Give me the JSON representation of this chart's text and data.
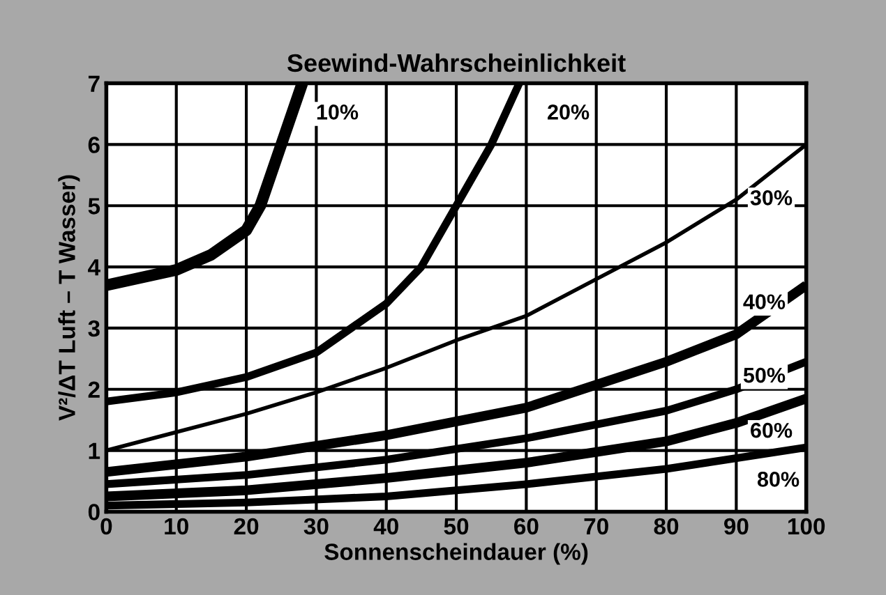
{
  "chart_data": {
    "type": "line",
    "title": "Seewind-Wahrscheinlichkeit",
    "xlabel": "Sonnenscheindauer (%)",
    "ylabel": "V²/ΔT Luft – T Wasser)",
    "xlim": [
      0,
      100
    ],
    "ylim": [
      0,
      7
    ],
    "xticks": [
      0,
      10,
      20,
      30,
      40,
      50,
      60,
      70,
      80,
      90,
      100
    ],
    "yticks": [
      0,
      1,
      2,
      3,
      4,
      5,
      6,
      7
    ],
    "grid": true,
    "marker": "none",
    "line_style": "solid",
    "series": [
      {
        "color": "#000000",
        "x": [
          0,
          10,
          15,
          20,
          22,
          25,
          28
        ],
        "values": [
          3.7,
          3.95,
          4.2,
          4.6,
          5.0,
          6.0,
          7.0
        ]
      },
      {
        "color": "#000000",
        "x": [
          0,
          10,
          20,
          30,
          40,
          45,
          50,
          55,
          59
        ],
        "values": [
          1.8,
          1.95,
          2.2,
          2.6,
          3.4,
          4.0,
          5.0,
          6.0,
          7.0
        ]
      },
      {
        "color": "#000000",
        "x": [
          0,
          10,
          20,
          30,
          40,
          50,
          60,
          70,
          80,
          90,
          100
        ],
        "values": [
          1.0,
          1.3,
          1.6,
          1.95,
          2.35,
          2.8,
          3.2,
          3.8,
          4.4,
          5.1,
          6.0
        ]
      },
      {
        "color": "#000000",
        "x": [
          0,
          20,
          40,
          60,
          80,
          90,
          100
        ],
        "values": [
          0.65,
          0.9,
          1.25,
          1.7,
          2.45,
          2.9,
          3.7
        ]
      },
      {
        "color": "#000000",
        "x": [
          0,
          20,
          40,
          60,
          80,
          90,
          100
        ],
        "values": [
          0.45,
          0.6,
          0.85,
          1.2,
          1.65,
          2.0,
          2.45
        ]
      },
      {
        "color": "#000000",
        "x": [
          0,
          20,
          40,
          60,
          80,
          90,
          100
        ],
        "values": [
          0.25,
          0.35,
          0.55,
          0.8,
          1.15,
          1.45,
          1.85
        ]
      },
      {
        "color": "#000000",
        "x": [
          0,
          20,
          40,
          60,
          80,
          100
        ],
        "values": [
          0.1,
          0.15,
          0.25,
          0.45,
          0.7,
          1.05
        ]
      }
    ],
    "annotations": [
      {
        "text": "10%",
        "x": 33,
        "y": 6.5
      },
      {
        "text": "20%",
        "x": 66,
        "y": 6.5
      },
      {
        "text": "30%",
        "x": 95,
        "y": 5.1
      },
      {
        "text": "40%",
        "x": 94,
        "y": 3.4
      },
      {
        "text": "50%",
        "x": 94,
        "y": 2.2
      },
      {
        "text": "60%",
        "x": 95,
        "y": 1.3
      },
      {
        "text": "80%",
        "x": 96,
        "y": 0.5
      }
    ]
  }
}
